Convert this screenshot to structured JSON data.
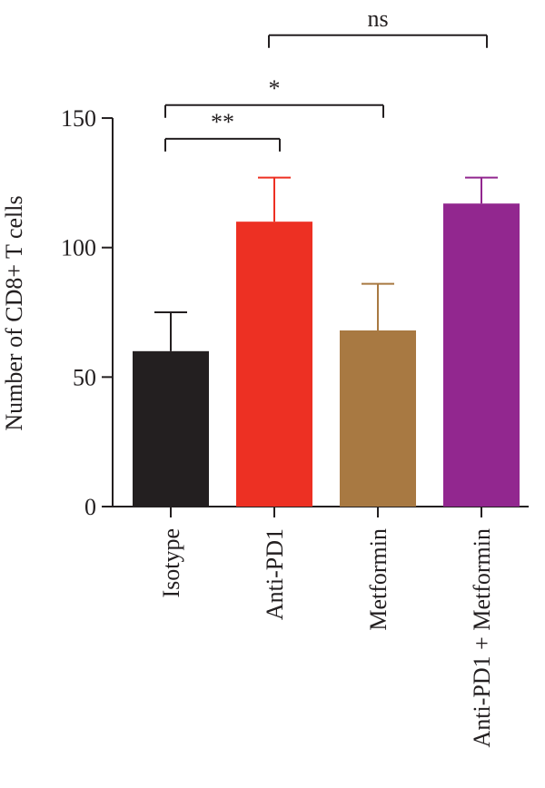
{
  "chart_data": {
    "type": "bar",
    "title": "",
    "xlabel": "",
    "ylabel": "Number of CD8+ T cells",
    "ylim": [
      0,
      150
    ],
    "yticks": [
      0,
      50,
      100,
      150
    ],
    "grid": false,
    "categories": [
      "Isotype",
      "Anti-PD1",
      "Metformin",
      "Anti-PD1 + Metformin"
    ],
    "values": [
      60,
      110,
      68,
      117
    ],
    "error_upper": [
      75,
      127,
      86,
      127
    ],
    "colors": [
      "#231f20",
      "#ed3023",
      "#a87942",
      "#92278f"
    ],
    "significance": [
      {
        "from": 0,
        "to": 1,
        "label": "**",
        "y": 142
      },
      {
        "from": 0,
        "to": 2,
        "label": "*",
        "y": 155
      },
      {
        "from": 1,
        "to": 3,
        "label": "ns",
        "y": 182
      }
    ]
  }
}
